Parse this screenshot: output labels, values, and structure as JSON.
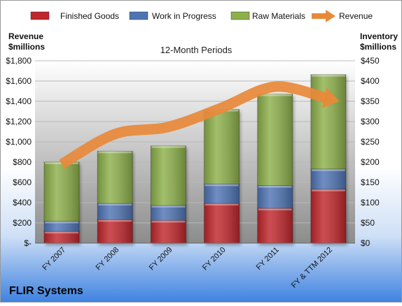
{
  "chart_data": {
    "type": "bar",
    "stacked": true,
    "company": "FLIR Systems",
    "subtitle": "12-Month Periods",
    "left_axis_label": [
      "Revenue",
      "$millions"
    ],
    "right_axis_label": [
      "Inventory",
      "$millions"
    ],
    "categories": [
      "FY 2007",
      "FY 2008",
      "FY 2009",
      "FY 2010",
      "FY 2011",
      "FY & TTM 2012"
    ],
    "series": [
      {
        "name": "Finished Goods",
        "kind": "bar",
        "axis": "right",
        "color": "#c0272d",
        "values": [
          29,
          58,
          56,
          98,
          86,
          133
        ]
      },
      {
        "name": "Work in Progress",
        "kind": "bar",
        "axis": "right",
        "color": "#4f74b4",
        "values": [
          25,
          40,
          37,
          48,
          56,
          50
        ]
      },
      {
        "name": "Raw Materials",
        "kind": "bar",
        "axis": "right",
        "color": "#8db04b",
        "values": [
          146,
          129,
          147,
          184,
          226,
          233
        ]
      },
      {
        "name": "Revenue",
        "kind": "line",
        "axis": "left",
        "color": "#e8893a",
        "values": [
          779,
          1077,
          1147,
          1336,
          1544,
          1425
        ]
      }
    ],
    "left_axis": {
      "min": 0,
      "max": 1800,
      "step": 200,
      "tick_labels": [
        "$-",
        "$200",
        "$400",
        "$600",
        "$800",
        "$1,000",
        "$1,200",
        "$1,400",
        "$1,600",
        "$1,800"
      ]
    },
    "right_axis": {
      "min": 0,
      "max": 450,
      "step": 50,
      "tick_labels": [
        "$0",
        "$50",
        "$100",
        "$150",
        "$200",
        "$250",
        "$300",
        "$350",
        "$400",
        "$450"
      ]
    },
    "legend_position": "top",
    "grid": true
  }
}
